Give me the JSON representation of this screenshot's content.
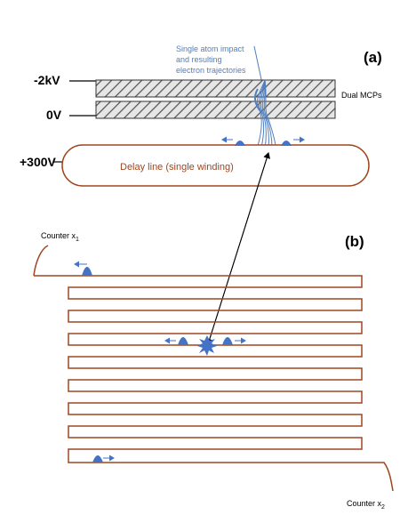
{
  "panel_a": {
    "label": "(a)",
    "annotation_lines": [
      "Single atom impact",
      "and resulting",
      "electron trajectories"
    ],
    "voltage_top": "-2kV",
    "voltage_mid": "0V",
    "voltage_delay": "+300V",
    "mcp_label": "Dual MCPs",
    "delay_line_label": "Delay line (single winding)"
  },
  "panel_b": {
    "label": "(b)",
    "counter_x1": {
      "text": "Counter x",
      "subscript": "1"
    },
    "counter_x2": {
      "text": "Counter x",
      "subscript": "2"
    }
  },
  "colors": {
    "annotation": "#4f7fc0",
    "wire": "#a0461e",
    "pulse": "#4472c4",
    "mcp_stroke": "#333333",
    "text": "#000000"
  },
  "icons": {
    "impact": "starburst-icon",
    "pulse": "signal-pulse-icon",
    "arrow": "direction-arrow-icon"
  }
}
